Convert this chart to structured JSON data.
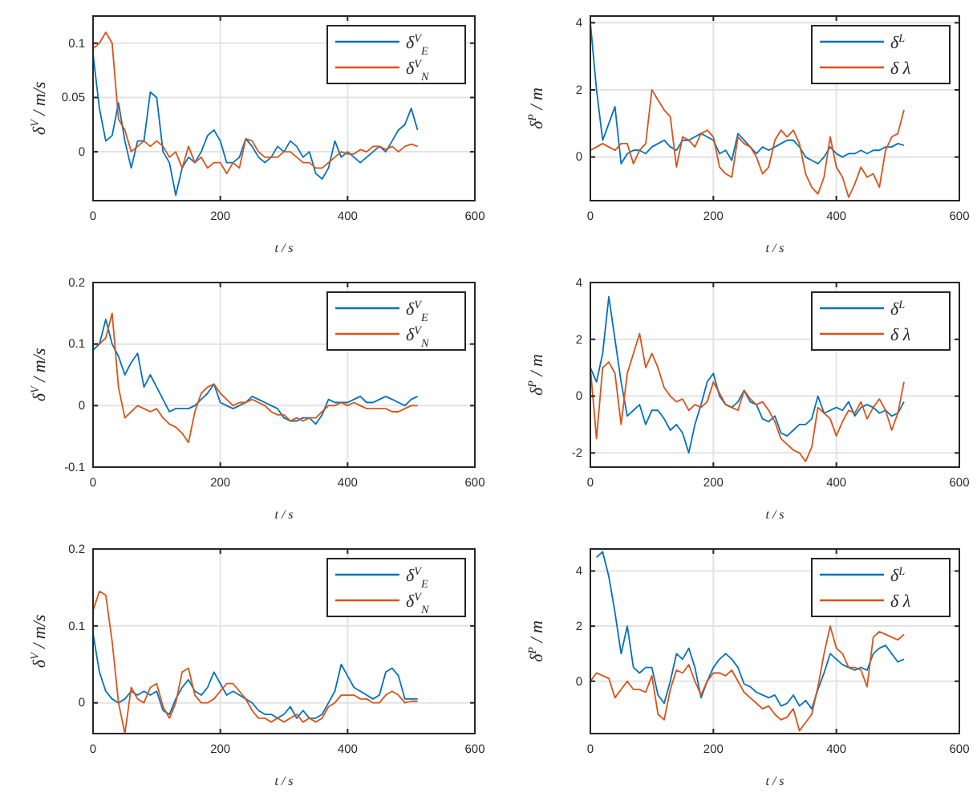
{
  "chart_data": [
    {
      "type": "line",
      "xlabel": "t / s",
      "ylabel": "δ$^{V}$ / m/s",
      "xlim": [
        0,
        600
      ],
      "xticks": [
        0,
        200,
        400,
        600
      ],
      "ylim": [
        -0.045,
        0.125
      ],
      "yticks": [
        0,
        0.05,
        0.1
      ],
      "grid": true,
      "legend": "top right",
      "x": [
        0,
        10,
        20,
        30,
        40,
        50,
        60,
        70,
        80,
        90,
        100,
        110,
        120,
        130,
        140,
        150,
        160,
        170,
        180,
        190,
        200,
        210,
        220,
        230,
        240,
        250,
        260,
        270,
        280,
        290,
        300,
        310,
        320,
        330,
        340,
        350,
        360,
        370,
        380,
        390,
        400,
        410,
        420,
        430,
        440,
        450,
        460,
        470,
        480,
        490,
        500,
        510
      ],
      "series": [
        {
          "name": "δ$^{V}$$_{E}$",
          "color": "#0072bd",
          "values": [
            0.09,
            0.04,
            0.01,
            0.015,
            0.045,
            0.01,
            -0.015,
            0.01,
            0.01,
            0.055,
            0.05,
            0,
            -0.01,
            -0.04,
            -0.015,
            -0.005,
            -0.01,
            0,
            0.015,
            0.02,
            0.01,
            -0.01,
            -0.01,
            -0.005,
            0.012,
            0.005,
            -0.005,
            -0.01,
            -0.005,
            0.005,
            0,
            0.01,
            0.005,
            -0.005,
            0,
            -0.02,
            -0.025,
            -0.015,
            0.01,
            -0.005,
            0,
            -0.005,
            -0.01,
            -0.005,
            0,
            0.005,
            0,
            0.01,
            0.02,
            0.025,
            0.04,
            0.02
          ]
        },
        {
          "name": "δ$^{V}$$_{N}$",
          "color": "#d95319",
          "values": [
            0.095,
            0.1,
            0.11,
            0.1,
            0.03,
            0.02,
            0,
            0.005,
            0.01,
            0.005,
            0.01,
            0.005,
            -0.005,
            0,
            -0.015,
            0.005,
            -0.01,
            -0.005,
            -0.015,
            -0.01,
            -0.01,
            -0.02,
            -0.01,
            -0.015,
            0.012,
            0.01,
            0,
            -0.005,
            -0.005,
            -0.005,
            0,
            0,
            -0.005,
            -0.01,
            -0.01,
            -0.015,
            -0.015,
            -0.01,
            -0.005,
            0,
            -0.002,
            -0.002,
            0.002,
            0,
            0.005,
            0.005,
            0.002,
            0.005,
            0,
            0.005,
            0.007,
            0.005
          ]
        }
      ]
    },
    {
      "type": "line",
      "xlabel": "t / s",
      "ylabel": "δ$^{P}$ / m",
      "xlim": [
        0,
        600
      ],
      "xticks": [
        0,
        200,
        400,
        600
      ],
      "ylim": [
        -1.3,
        4.2
      ],
      "yticks": [
        0,
        2,
        4
      ],
      "grid": true,
      "legend": "top right",
      "x": [
        0,
        10,
        20,
        30,
        40,
        50,
        60,
        70,
        80,
        90,
        100,
        110,
        120,
        130,
        140,
        150,
        160,
        170,
        180,
        190,
        200,
        210,
        220,
        230,
        240,
        250,
        260,
        270,
        280,
        290,
        300,
        310,
        320,
        330,
        340,
        350,
        360,
        370,
        380,
        390,
        400,
        410,
        420,
        430,
        440,
        450,
        460,
        470,
        480,
        490,
        500,
        510
      ],
      "series": [
        {
          "name": "δ$^{L}$",
          "color": "#0072bd",
          "values": [
            4.0,
            2.0,
            0.5,
            1.0,
            1.5,
            -0.2,
            0.1,
            0.2,
            0.2,
            0.1,
            0.3,
            0.4,
            0.5,
            0.3,
            0.2,
            0.5,
            0.5,
            0.6,
            0.7,
            0.6,
            0.5,
            0.1,
            0.2,
            -0.1,
            0.7,
            0.5,
            0.3,
            0.1,
            0.3,
            0.2,
            0.3,
            0.4,
            0.5,
            0.5,
            0.3,
            0.0,
            -0.1,
            -0.2,
            0.0,
            0.3,
            0.1,
            0.0,
            0.1,
            0.1,
            0.2,
            0.1,
            0.2,
            0.2,
            0.3,
            0.3,
            0.4,
            0.35
          ]
        },
        {
          "name": "δ λ",
          "color": "#d95319",
          "values": [
            0.2,
            0.3,
            0.4,
            0.3,
            0.2,
            0.4,
            0.4,
            -0.2,
            0.2,
            0.4,
            2.0,
            1.7,
            1.4,
            1.2,
            -0.3,
            0.6,
            0.5,
            0.3,
            0.7,
            0.8,
            0.6,
            -0.3,
            -0.5,
            -0.6,
            0.6,
            0.4,
            0.3,
            0.0,
            -0.5,
            -0.3,
            0.5,
            0.8,
            0.6,
            0.8,
            0.4,
            -0.5,
            -0.9,
            -1.1,
            -0.6,
            0.6,
            -0.3,
            -0.6,
            -1.2,
            -0.8,
            -0.3,
            -0.6,
            -0.5,
            -0.9,
            0.2,
            0.6,
            0.7,
            1.4
          ]
        }
      ]
    },
    {
      "type": "line",
      "xlabel": "t / s",
      "ylabel": "δ$^{V}$ / m/s",
      "xlim": [
        0,
        600
      ],
      "xticks": [
        0,
        200,
        400,
        600
      ],
      "ylim": [
        -0.1,
        0.2
      ],
      "yticks": [
        -0.1,
        0,
        0.1,
        0.2
      ],
      "grid": true,
      "legend": "top right",
      "x": [
        0,
        10,
        20,
        30,
        40,
        50,
        60,
        70,
        80,
        90,
        100,
        110,
        120,
        130,
        140,
        150,
        160,
        170,
        180,
        190,
        200,
        210,
        220,
        230,
        240,
        250,
        260,
        270,
        280,
        290,
        300,
        310,
        320,
        330,
        340,
        350,
        360,
        370,
        380,
        390,
        400,
        410,
        420,
        430,
        440,
        450,
        460,
        470,
        480,
        490,
        500,
        510
      ],
      "series": [
        {
          "name": "δ$^{V}$$_{E}$",
          "color": "#0072bd",
          "values": [
            0.09,
            0.1,
            0.14,
            0.1,
            0.08,
            0.05,
            0.07,
            0.085,
            0.03,
            0.05,
            0.03,
            0.01,
            -0.01,
            -0.005,
            -0.005,
            -0.005,
            0,
            0.01,
            0.02,
            0.035,
            0.005,
            0,
            -0.005,
            0,
            0.005,
            0.015,
            0.01,
            0.005,
            0,
            -0.005,
            -0.02,
            -0.025,
            -0.025,
            -0.02,
            -0.02,
            -0.03,
            -0.015,
            0.01,
            0.005,
            0.005,
            0.005,
            0.01,
            0.015,
            0.005,
            0.005,
            0.01,
            0.015,
            0.01,
            0.005,
            0,
            0.01,
            0.015
          ]
        },
        {
          "name": "δ$^{V}$$_{N}$",
          "color": "#d95319",
          "values": [
            0.1,
            0.1,
            0.11,
            0.15,
            0.03,
            -0.02,
            -0.01,
            0,
            -0.005,
            -0.01,
            -0.005,
            -0.02,
            -0.03,
            -0.035,
            -0.045,
            -0.06,
            -0.01,
            0.02,
            0.03,
            0.035,
            0.02,
            0.01,
            0,
            0.005,
            0.005,
            0.01,
            0.005,
            0,
            -0.01,
            -0.015,
            -0.015,
            -0.025,
            -0.02,
            -0.025,
            -0.02,
            -0.02,
            -0.01,
            0,
            0,
            0.005,
            0,
            0.005,
            0,
            -0.005,
            -0.005,
            -0.005,
            -0.005,
            -0.01,
            -0.01,
            -0.005,
            0,
            0
          ]
        }
      ]
    },
    {
      "type": "line",
      "xlabel": "t / s",
      "ylabel": "δ$^{P}$ / m",
      "xlim": [
        0,
        600
      ],
      "xticks": [
        0,
        200,
        400,
        600
      ],
      "ylim": [
        -2.5,
        4
      ],
      "yticks": [
        -2,
        0,
        2,
        4
      ],
      "grid": true,
      "legend": "top right",
      "x": [
        0,
        10,
        20,
        30,
        40,
        50,
        60,
        70,
        80,
        90,
        100,
        110,
        120,
        130,
        140,
        150,
        160,
        170,
        180,
        190,
        200,
        210,
        220,
        230,
        240,
        250,
        260,
        270,
        280,
        290,
        300,
        310,
        320,
        330,
        340,
        350,
        360,
        370,
        380,
        390,
        400,
        410,
        420,
        430,
        440,
        450,
        460,
        470,
        480,
        490,
        500,
        510
      ],
      "series": [
        {
          "name": "δ$^{L}$",
          "color": "#0072bd",
          "values": [
            1.0,
            0.5,
            1.5,
            3.5,
            2.0,
            0.5,
            -0.7,
            -0.5,
            -0.3,
            -1.0,
            -0.5,
            -0.5,
            -0.8,
            -1.2,
            -1.0,
            -1.3,
            -2.0,
            -1.0,
            -0.3,
            0.5,
            0.8,
            0.0,
            -0.3,
            -0.4,
            -0.2,
            0.2,
            -0.2,
            -0.3,
            -0.8,
            -0.9,
            -0.7,
            -1.3,
            -1.4,
            -1.2,
            -1.0,
            -1.0,
            -0.8,
            0.0,
            -0.6,
            -0.5,
            -0.4,
            -0.5,
            -0.2,
            -0.7,
            -0.4,
            -0.3,
            -0.4,
            -0.6,
            -0.5,
            -0.7,
            -0.6,
            -0.2
          ]
        },
        {
          "name": "δ λ",
          "color": "#d95319",
          "values": [
            1.0,
            -1.5,
            1.0,
            1.2,
            0.8,
            -1.0,
            0.8,
            1.5,
            2.2,
            1.0,
            1.5,
            1.0,
            0.3,
            0.0,
            -0.2,
            -0.1,
            -0.5,
            -0.3,
            -0.4,
            -0.2,
            0.5,
            0.1,
            -0.3,
            -0.4,
            -0.5,
            0.2,
            -0.1,
            -0.3,
            -0.2,
            -0.5,
            -0.9,
            -1.5,
            -1.7,
            -1.9,
            -2.0,
            -2.3,
            -1.8,
            -0.4,
            -0.6,
            -0.8,
            -1.4,
            -0.9,
            -0.5,
            -0.6,
            -0.2,
            -0.8,
            -0.4,
            -0.1,
            -0.5,
            -1.2,
            -0.6,
            0.5
          ]
        }
      ]
    },
    {
      "type": "line",
      "xlabel": "t / s",
      "ylabel": "δ$^{V}$ / m/s",
      "xlim": [
        0,
        600
      ],
      "xticks": [
        0,
        200,
        400,
        600
      ],
      "ylim": [
        -0.04,
        0.2
      ],
      "yticks": [
        0,
        0.1,
        0.2
      ],
      "grid": true,
      "legend": "top right",
      "x": [
        0,
        10,
        20,
        30,
        40,
        50,
        60,
        70,
        80,
        90,
        100,
        110,
        120,
        130,
        140,
        150,
        160,
        170,
        180,
        190,
        200,
        210,
        220,
        230,
        240,
        250,
        260,
        270,
        280,
        290,
        300,
        310,
        320,
        330,
        340,
        350,
        360,
        370,
        380,
        390,
        400,
        410,
        420,
        430,
        440,
        450,
        460,
        470,
        480,
        490,
        500,
        510
      ],
      "series": [
        {
          "name": "δ$^{V}$$_{E}$",
          "color": "#0072bd",
          "values": [
            0.09,
            0.04,
            0.015,
            0.005,
            0,
            0.005,
            0.015,
            0.01,
            0.015,
            0.01,
            0.015,
            -0.01,
            -0.015,
            0.005,
            0.02,
            0.03,
            0.015,
            0.01,
            0.02,
            0.04,
            0.025,
            0.01,
            0.015,
            0.01,
            0.005,
            0,
            -0.01,
            -0.015,
            -0.015,
            -0.02,
            -0.015,
            -0.005,
            -0.02,
            -0.01,
            -0.02,
            -0.02,
            -0.015,
            0,
            0.015,
            0.05,
            0.035,
            0.02,
            0.015,
            0.01,
            0.005,
            0.01,
            0.04,
            0.045,
            0.035,
            0.005,
            0.005,
            0.005
          ]
        },
        {
          "name": "δ$^{V}$$_{N}$",
          "color": "#d95319",
          "values": [
            0.12,
            0.145,
            0.14,
            0.08,
            0,
            -0.04,
            0.02,
            0.005,
            0,
            0.02,
            0.025,
            -0.005,
            -0.02,
            0,
            0.04,
            0.045,
            0.01,
            0,
            0,
            0.005,
            0.015,
            0.025,
            0.025,
            0.015,
            0.005,
            -0.01,
            -0.02,
            -0.02,
            -0.025,
            -0.02,
            -0.025,
            -0.02,
            -0.015,
            -0.025,
            -0.02,
            -0.025,
            -0.02,
            -0.005,
            0,
            0.01,
            0.01,
            0.01,
            0.005,
            0.005,
            0,
            0,
            0.01,
            0.015,
            0.01,
            0,
            0.002,
            0.002
          ]
        }
      ]
    },
    {
      "type": "line",
      "xlabel": "t / s",
      "ylabel": "δ$^{P}$ / m",
      "xlim": [
        0,
        600
      ],
      "xticks": [
        0,
        200,
        400,
        600
      ],
      "ylim": [
        -1.9,
        4.8
      ],
      "yticks": [
        0,
        2,
        4
      ],
      "grid": true,
      "legend": "top right",
      "x": [
        0,
        10,
        20,
        30,
        40,
        50,
        60,
        70,
        80,
        90,
        100,
        110,
        120,
        130,
        140,
        150,
        160,
        170,
        180,
        190,
        200,
        210,
        220,
        230,
        240,
        250,
        260,
        270,
        280,
        290,
        300,
        310,
        320,
        330,
        340,
        350,
        360,
        370,
        380,
        390,
        400,
        410,
        420,
        430,
        440,
        450,
        460,
        470,
        480,
        490,
        500,
        510
      ],
      "series": [
        {
          "name": "δ$^{L}$",
          "color": "#0072bd",
          "values": [
            null,
            4.5,
            4.7,
            3.8,
            2.5,
            1.0,
            2.0,
            0.5,
            0.3,
            0.5,
            0.5,
            -0.5,
            -0.8,
            0.0,
            1.0,
            0.8,
            1.2,
            0.5,
            -0.6,
            0.0,
            0.5,
            0.8,
            1.0,
            0.8,
            0.5,
            -0.1,
            -0.2,
            -0.4,
            -0.5,
            -0.6,
            -0.5,
            -0.9,
            -0.8,
            -0.5,
            -0.9,
            -0.7,
            -1.0,
            -0.3,
            0.3,
            1.0,
            0.8,
            0.6,
            0.5,
            0.4,
            0.5,
            0.4,
            1.0,
            1.2,
            1.3,
            1.0,
            0.7,
            0.8
          ]
        },
        {
          "name": "δ λ",
          "color": "#d95319",
          "values": [
            0.0,
            0.3,
            0.2,
            0.1,
            -0.6,
            -0.3,
            0.0,
            -0.3,
            -0.3,
            -0.4,
            0.2,
            -1.2,
            -1.4,
            -0.3,
            0.4,
            0.3,
            0.6,
            0.0,
            -0.5,
            0.0,
            0.3,
            0.3,
            0.2,
            0.4,
            0.0,
            -0.4,
            -0.6,
            -0.8,
            -1.0,
            -0.9,
            -1.2,
            -1.4,
            -1.3,
            -1.0,
            -1.8,
            -1.5,
            -1.2,
            -0.2,
            1.0,
            2.0,
            1.2,
            1.0,
            0.5,
            0.5,
            0.4,
            -0.2,
            1.6,
            1.8,
            1.7,
            1.6,
            1.5,
            1.7
          ]
        }
      ]
    }
  ]
}
